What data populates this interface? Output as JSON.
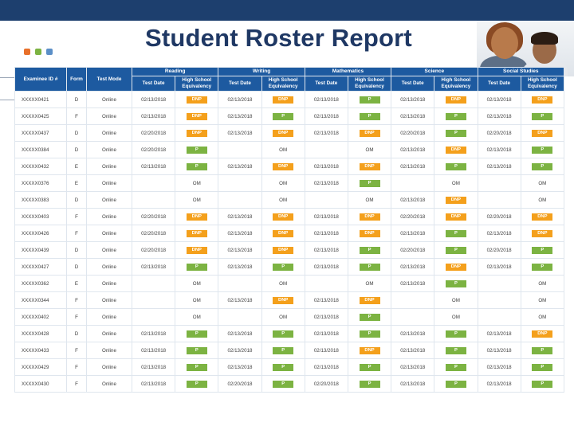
{
  "title": "Student Roster Report",
  "colors": {
    "dnp": "#f4a01c",
    "pass": "#7cb342",
    "header": "#1d5aa0",
    "title": "#1f3864"
  },
  "groups": [
    "Reading",
    "Writing",
    "Mathematics",
    "Science",
    "Social Studies"
  ],
  "columns": {
    "examinee": "Examinee ID #",
    "form": "Form",
    "mode": "Test Mode",
    "test_date": "Test Date",
    "hse": "High School Equivalency"
  },
  "rows": [
    [
      "XXXXX0421",
      "D",
      "Online",
      "02/13/2018",
      "DNP",
      "02/13/2018",
      "DNP",
      "02/13/2018",
      "P",
      "02/13/2018",
      "DNP",
      "02/13/2018",
      "DNP"
    ],
    [
      "XXXXX0425",
      "F",
      "Online",
      "02/13/2018",
      "DNP",
      "02/13/2018",
      "P",
      "02/13/2018",
      "P",
      "02/13/2018",
      "P",
      "02/13/2018",
      "P"
    ],
    [
      "XXXXX0437",
      "D",
      "Online",
      "02/20/2018",
      "DNP",
      "02/13/2018",
      "DNP",
      "02/13/2018",
      "DNP",
      "02/20/2018",
      "P",
      "02/20/2018",
      "DNP"
    ],
    [
      "XXXXX0384",
      "D",
      "Online",
      "02/20/2018",
      "P",
      "",
      "OM",
      "",
      "OM",
      "02/13/2018",
      "DNP",
      "02/13/2018",
      "P"
    ],
    [
      "XXXXX0432",
      "E",
      "Online",
      "02/13/2018",
      "P",
      "02/13/2018",
      "DNP",
      "02/13/2018",
      "DNP",
      "02/13/2018",
      "P",
      "02/13/2018",
      "P"
    ],
    [
      "XXXXX0376",
      "E",
      "Online",
      "",
      "OM",
      "",
      "OM",
      "02/13/2018",
      "P",
      "",
      "OM",
      "",
      "OM"
    ],
    [
      "XXXXX0383",
      "D",
      "Online",
      "",
      "OM",
      "",
      "OM",
      "",
      "OM",
      "02/13/2018",
      "DNP",
      "",
      "OM"
    ],
    [
      "XXXXX0403",
      "F",
      "Online",
      "02/20/2018",
      "DNP",
      "02/13/2018",
      "DNP",
      "02/13/2018",
      "DNP",
      "02/20/2018",
      "DNP",
      "02/20/2018",
      "DNP"
    ],
    [
      "XXXXX0426",
      "F",
      "Online",
      "02/20/2018",
      "DNP",
      "02/13/2018",
      "DNP",
      "02/13/2018",
      "DNP",
      "02/13/2018",
      "P",
      "02/13/2018",
      "DNP"
    ],
    [
      "XXXXX0439",
      "D",
      "Online",
      "02/20/2018",
      "DNP",
      "02/13/2018",
      "DNP",
      "02/13/2018",
      "P",
      "02/20/2018",
      "P",
      "02/20/2018",
      "P"
    ],
    [
      "XXXXX0427",
      "D",
      "Online",
      "02/13/2018",
      "P",
      "02/13/2018",
      "P",
      "02/13/2018",
      "P",
      "02/13/2018",
      "DNP",
      "02/13/2018",
      "P"
    ],
    [
      "XXXXX0362",
      "E",
      "Online",
      "",
      "OM",
      "",
      "OM",
      "",
      "OM",
      "02/13/2018",
      "P",
      "",
      "OM"
    ],
    [
      "XXXXX0344",
      "F",
      "Online",
      "",
      "OM",
      "02/13/2018",
      "DNP",
      "02/13/2018",
      "DNP",
      "",
      "OM",
      "",
      "OM"
    ],
    [
      "XXXXX0402",
      "F",
      "Online",
      "",
      "OM",
      "",
      "OM",
      "02/13/2018",
      "P",
      "",
      "OM",
      "",
      "OM"
    ],
    [
      "XXXXX0428",
      "D",
      "Online",
      "02/13/2018",
      "P",
      "02/13/2018",
      "P",
      "02/13/2018",
      "P",
      "02/13/2018",
      "P",
      "02/13/2018",
      "DNP"
    ],
    [
      "XXXXX0433",
      "F",
      "Online",
      "02/13/2018",
      "P",
      "02/13/2018",
      "P",
      "02/13/2018",
      "DNP",
      "02/13/2018",
      "P",
      "02/13/2018",
      "P"
    ],
    [
      "XXXXX0429",
      "F",
      "Online",
      "02/13/2018",
      "P",
      "02/13/2018",
      "P",
      "02/13/2018",
      "P",
      "02/13/2018",
      "P",
      "02/13/2018",
      "P"
    ],
    [
      "XXXXX0430",
      "F",
      "Online",
      "02/13/2018",
      "P",
      "02/20/2018",
      "P",
      "02/20/2018",
      "P",
      "02/13/2018",
      "P",
      "02/13/2018",
      "P"
    ]
  ]
}
